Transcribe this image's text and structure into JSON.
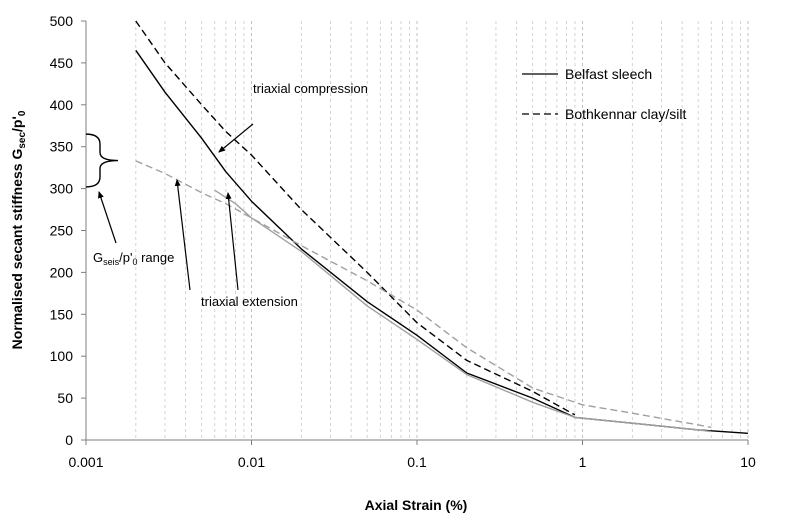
{
  "chart_data": {
    "type": "line",
    "xlabel": "Axial Strain (%)",
    "ylabel": "Normalised secant stiffness G",
    "ylabel_sub": "sec",
    "ylabel_tail": "/p'",
    "ylabel_tail_sub": "0",
    "xscale": "log",
    "xlim": [
      0.001,
      10
    ],
    "ylim": [
      0,
      500
    ],
    "xticks": [
      0.001,
      0.01,
      0.1,
      1,
      10
    ],
    "xtick_labels": [
      "0.001",
      "0.01",
      "0.1",
      "1",
      "10"
    ],
    "yticks": [
      0,
      50,
      100,
      150,
      200,
      250,
      300,
      350,
      400,
      450,
      500
    ],
    "ytick_labels": [
      "0",
      "50",
      "100",
      "150",
      "200",
      "250",
      "300",
      "350",
      "400",
      "450",
      "500"
    ],
    "grid": "vertical minor dashed",
    "legend_position": "top-right",
    "legend": [
      {
        "label": "Belfast sleech",
        "style": "solid"
      },
      {
        "label": "Bothkennar clay/silt",
        "style": "dashed"
      }
    ],
    "series": [
      {
        "name": "Belfast sleech",
        "branch": "triaxial compression",
        "style": "solid",
        "color": "#000000",
        "x": [
          0.002,
          0.003,
          0.005,
          0.007,
          0.01,
          0.02,
          0.05,
          0.1,
          0.2,
          0.5,
          0.9,
          2,
          5,
          10
        ],
        "y": [
          465,
          415,
          360,
          320,
          285,
          228,
          165,
          125,
          80,
          50,
          27,
          20,
          12,
          8
        ]
      },
      {
        "name": "Belfast sleech",
        "branch": "triaxial extension",
        "style": "solid",
        "color": "#a0a0a0",
        "x": [
          0.006,
          0.008,
          0.01,
          0.02,
          0.05,
          0.1,
          0.2,
          0.5,
          0.9,
          2,
          5,
          6
        ],
        "y": [
          298,
          282,
          265,
          225,
          160,
          120,
          78,
          45,
          27,
          20,
          12,
          10
        ]
      },
      {
        "name": "Bothkennar clay/silt",
        "branch": "triaxial compression",
        "style": "dashed",
        "color": "#000000",
        "x": [
          0.002,
          0.003,
          0.005,
          0.007,
          0.01,
          0.02,
          0.05,
          0.1,
          0.2,
          0.5,
          0.9
        ],
        "y": [
          500,
          450,
          400,
          368,
          340,
          275,
          200,
          140,
          95,
          58,
          30
        ]
      },
      {
        "name": "Bothkennar clay/silt",
        "branch": "triaxial extension",
        "style": "dashed",
        "color": "#a0a0a0",
        "x": [
          0.002,
          0.003,
          0.005,
          0.007,
          0.01,
          0.02,
          0.05,
          0.1,
          0.2,
          0.5,
          1,
          2,
          5,
          6
        ],
        "y": [
          333,
          318,
          295,
          282,
          265,
          232,
          190,
          155,
          110,
          62,
          42,
          32,
          18,
          15
        ]
      }
    ],
    "annotations": {
      "compression": "triaxial compression",
      "extension": "triaxial extension",
      "range_main": "G",
      "range_sub": "seis",
      "range_tail": "/p'",
      "range_tail_sub": "0",
      "range_end": " range",
      "range_low": 302,
      "range_high": 365
    }
  }
}
